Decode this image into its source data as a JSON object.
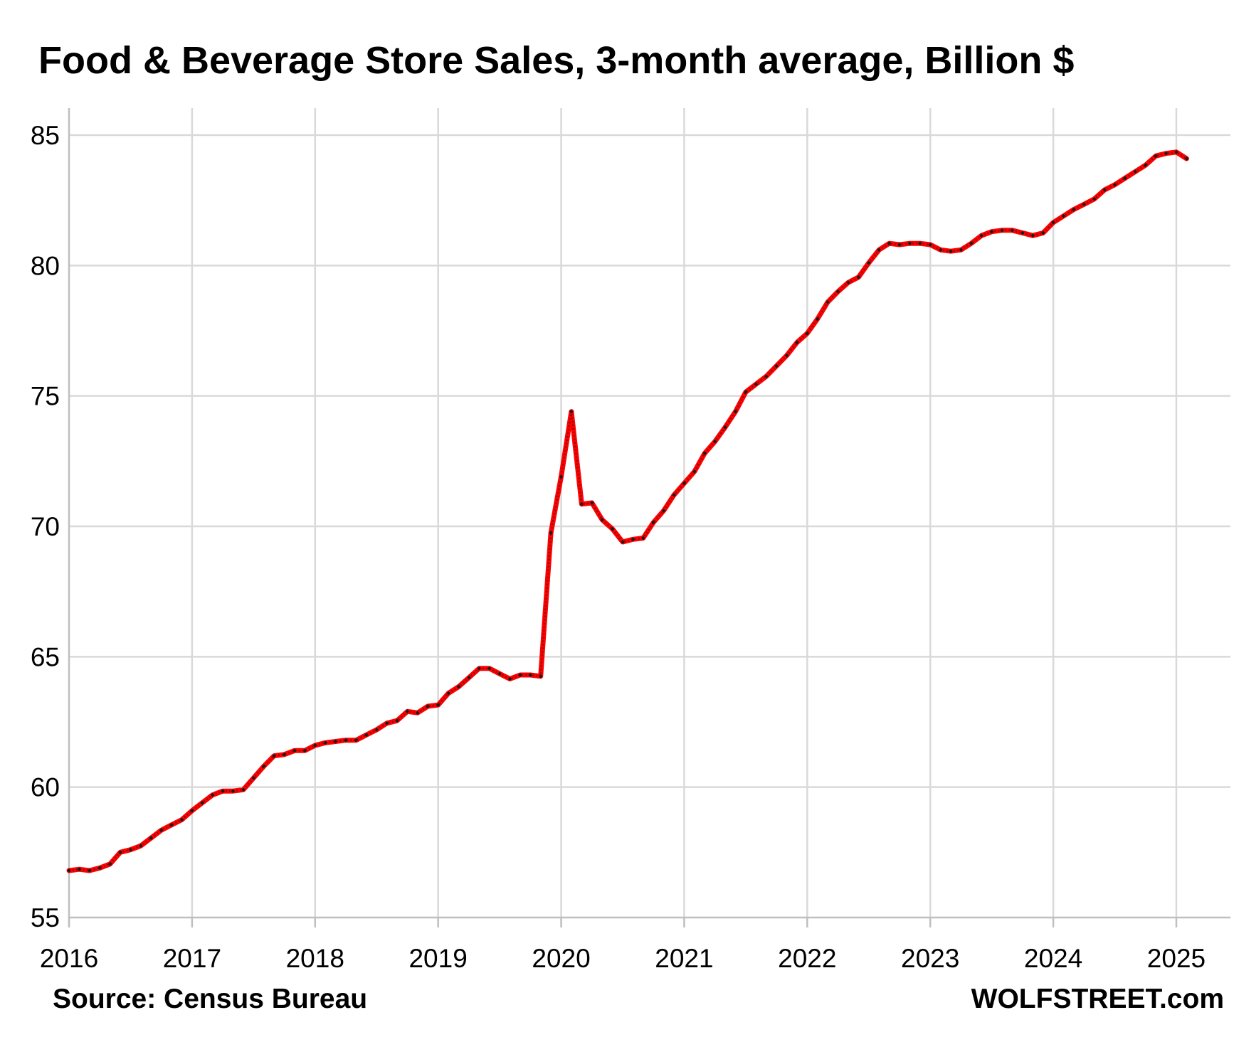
{
  "chart_data": {
    "type": "line",
    "title": "Food & Beverage Store Sales, 3-month average, Billion $",
    "xlabel": "",
    "ylabel": "",
    "ylim": [
      55,
      85
    ],
    "xlim": [
      2016,
      2025.4167
    ],
    "y_ticks": [
      "55",
      "60",
      "65",
      "70",
      "75",
      "80",
      "85"
    ],
    "x_ticks": [
      "2016",
      "2017",
      "2018",
      "2019",
      "2020",
      "2021",
      "2022",
      "2023",
      "2024",
      "2025"
    ],
    "grid": true,
    "legend": "none",
    "line_color": "#ff0000",
    "marker_color": "#1a1a1a",
    "grid_color": "#d9d9d9",
    "series": [
      {
        "values": [
          56.8,
          56.85,
          56.8,
          56.9,
          57.05,
          57.5,
          57.6,
          57.75,
          58.05,
          58.35,
          58.55,
          58.75,
          59.1,
          59.4,
          59.7,
          59.85,
          59.85,
          59.9,
          60.35,
          60.8,
          61.2,
          61.25,
          61.4,
          61.4,
          61.6,
          61.7,
          61.75,
          61.8,
          61.8,
          62.0,
          62.2,
          62.45,
          62.55,
          62.9,
          62.85,
          63.1,
          63.15,
          63.6,
          63.85,
          64.2,
          64.55,
          64.55,
          64.35,
          64.15,
          64.3,
          64.3,
          64.25,
          69.75,
          71.9,
          74.4,
          70.85,
          70.9,
          70.25,
          69.9,
          69.4,
          69.5,
          69.55,
          70.15,
          70.6,
          71.2,
          71.65,
          72.1,
          72.8,
          73.25,
          73.8,
          74.4,
          75.15,
          75.45,
          75.75,
          76.15,
          76.55,
          77.05,
          77.4,
          77.95,
          78.6,
          79.0,
          79.35,
          79.55,
          80.1,
          80.6,
          80.85,
          80.8,
          80.85,
          80.85,
          80.8,
          80.6,
          80.55,
          80.6,
          80.85,
          81.15,
          81.3,
          81.35,
          81.35,
          81.25,
          81.15,
          81.25,
          81.65,
          81.9,
          82.15,
          82.35,
          82.55,
          82.9,
          83.1,
          83.35,
          83.6,
          83.85,
          84.2,
          84.3,
          84.35,
          84.1
        ]
      }
    ],
    "x_start": 2016,
    "x_step_months": 1
  },
  "footer": {
    "source": "Source: Census Bureau",
    "brand": "WOLFSTREET.com"
  }
}
